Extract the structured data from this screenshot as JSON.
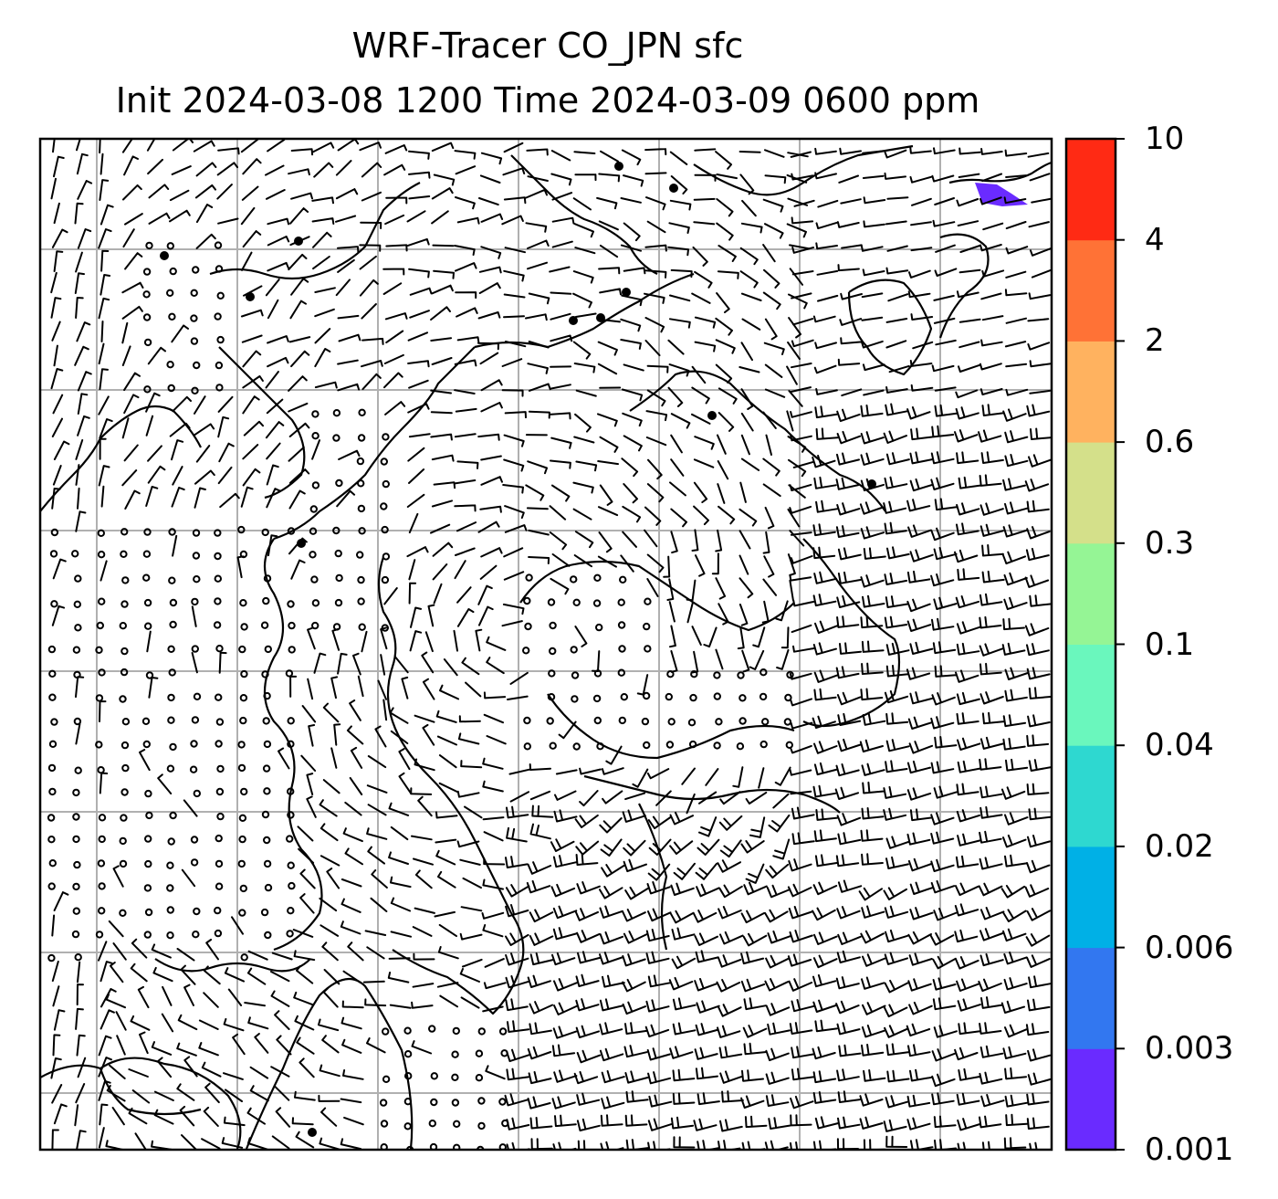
{
  "title": {
    "line1": "WRF-Tracer CO_JPN sfc",
    "line2": "Init 2024-03-08 1200 Time 2024-03-09 0600 ppm"
  },
  "colorbar": {
    "levels": [
      "0.001",
      "0.003",
      "0.006",
      "0.02",
      "0.04",
      "0.1",
      "0.3",
      "0.6",
      "2",
      "4",
      "10"
    ],
    "colors": [
      "#6a2bff",
      "#3277f0",
      "#00b0e6",
      "#2ed8d0",
      "#6af7bd",
      "#95f595",
      "#d4e08a",
      "#ffb25f",
      "#ff7236",
      "#ff2a14"
    ]
  },
  "map": {
    "gridline_color": "#b0b0b0",
    "coast_color": "#000000",
    "plume_color": "#6a2bff",
    "field": "wind barbs over CO tracer concentration"
  }
}
